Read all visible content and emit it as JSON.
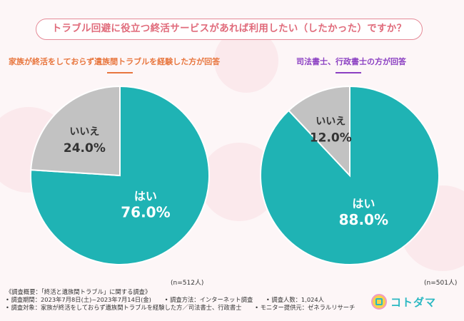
{
  "title": "トラブル回避に役立つ終活サービスがあれば利用したい（したかった）ですか？",
  "chart_data": [
    {
      "type": "pie",
      "title": "家族が終活をしておらず遺族間トラブルを経験した方が回答",
      "sample_size": "(n=512人)",
      "slices": [
        {
          "label": "はい",
          "value": 76.0,
          "value_label": "76.0%",
          "color": "#1fb3b4"
        },
        {
          "label": "いいえ",
          "value": 24.0,
          "value_label": "24.0%",
          "color": "#c2c2c2"
        }
      ]
    },
    {
      "type": "pie",
      "title": "司法書士、行政書士の方が回答",
      "sample_size": "(n=501人)",
      "slices": [
        {
          "label": "はい",
          "value": 88.0,
          "value_label": "88.0%",
          "color": "#1fb3b4"
        },
        {
          "label": "いいえ",
          "value": 12.0,
          "value_label": "12.0%",
          "color": "#c2c2c2"
        }
      ]
    }
  ],
  "footer": {
    "summary": "《調査概要：「終活と遺族間トラブル」に関する調査》",
    "period": "• 調査期間：2023年7月8日(土)~2023年7月14日(金)",
    "method": "• 調査方法：インターネット調査",
    "count": "• 調査人数：1,024人",
    "target": "• 調査対象：家族が終活をしておらず遺族間トラブルを経験した方／司法書士、行政書士",
    "provider": "• モニター提供元：ゼネラルリサーチ"
  },
  "logo": {
    "text": "コトダマ",
    "color": "#2bb8c2"
  }
}
